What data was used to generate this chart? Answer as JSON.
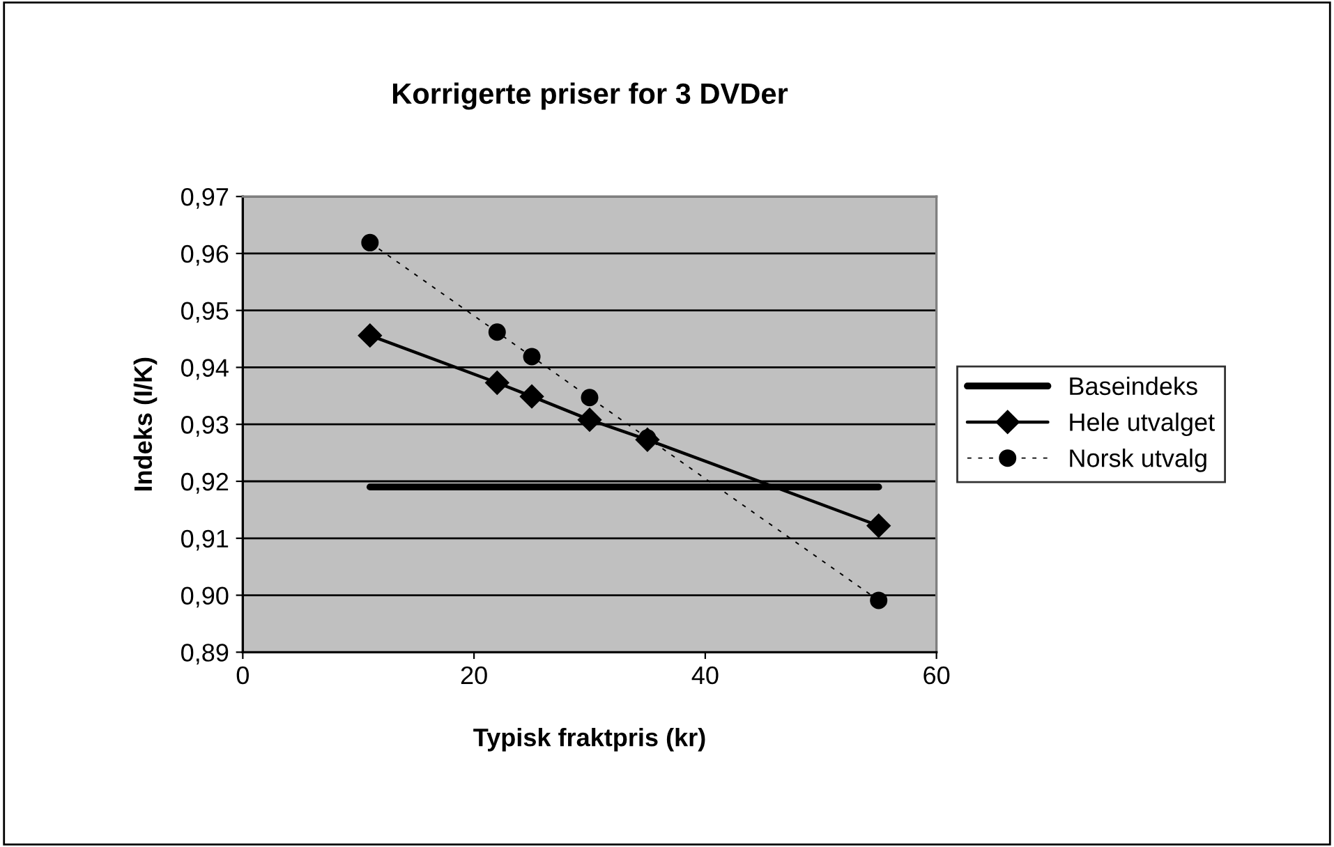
{
  "chart_data": {
    "type": "line",
    "title": "Korrigerte priser for 3 DVDer",
    "xlabel": "Typisk fraktpris (kr)",
    "ylabel": "Indeks (I/K)",
    "xlim": [
      0,
      60
    ],
    "xticks": [
      0,
      20,
      40,
      60
    ],
    "ylim": [
      0.89,
      0.97
    ],
    "yticks": [
      {
        "value": 0.89,
        "label": "0,89"
      },
      {
        "value": 0.9,
        "label": "0,90"
      },
      {
        "value": 0.91,
        "label": "0,91"
      },
      {
        "value": 0.92,
        "label": "0,92"
      },
      {
        "value": 0.93,
        "label": "0,93"
      },
      {
        "value": 0.94,
        "label": "0,94"
      },
      {
        "value": 0.95,
        "label": "0,95"
      },
      {
        "value": 0.96,
        "label": "0,96"
      },
      {
        "value": 0.97,
        "label": "0,97"
      }
    ],
    "grid": "y",
    "legend": "right",
    "series": [
      {
        "name": "Baseindeks",
        "color": "#000000",
        "x": [
          11,
          55
        ],
        "values": [
          0.919,
          0.919
        ],
        "marker": "none",
        "line_style": "solid"
      },
      {
        "name": "Hele utvalget",
        "color": "#000000",
        "x": [
          11,
          22,
          25,
          30,
          35,
          55
        ],
        "values": [
          0.9456,
          0.9373,
          0.9349,
          0.9308,
          0.9273,
          0.9122
        ],
        "marker": "diamond",
        "line_style": "solid"
      },
      {
        "name": "Norsk utvalg",
        "color": "#000000",
        "x": [
          11,
          22,
          25,
          30,
          35,
          55
        ],
        "values": [
          0.9619,
          0.9462,
          0.9419,
          0.9347,
          0.9276,
          0.8991
        ],
        "marker": "circle",
        "line_style": "dashed"
      }
    ]
  }
}
